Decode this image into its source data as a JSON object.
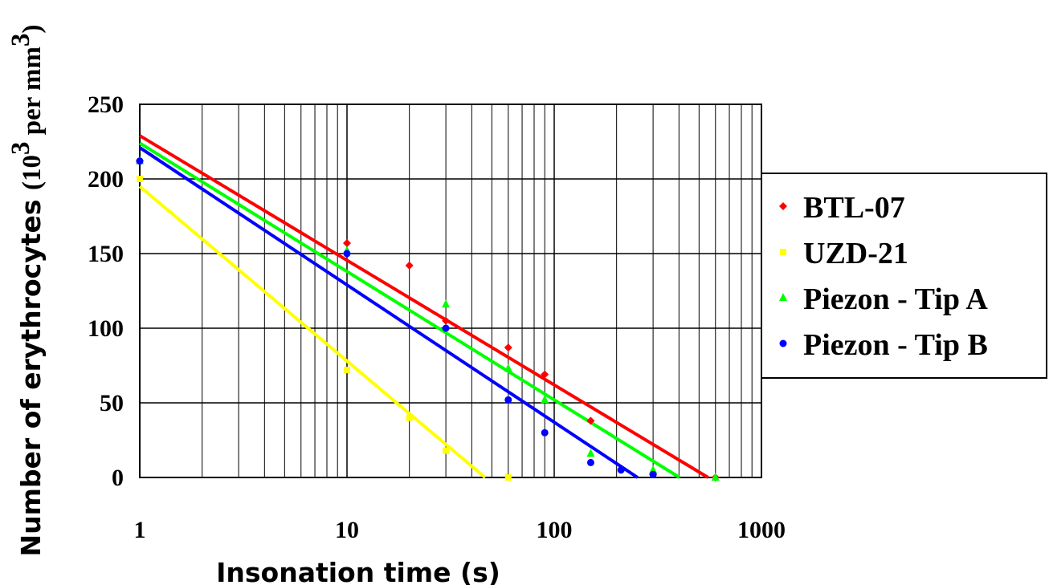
{
  "chart_data": {
    "type": "scatter",
    "x_scale": "log",
    "xlim": [
      1,
      1000
    ],
    "ylim": [
      0,
      250
    ],
    "x_ticks": [
      1,
      10,
      100,
      1000
    ],
    "x_tick_labels": [
      "1",
      "10",
      "100",
      "1000"
    ],
    "y_ticks": [
      0,
      50,
      100,
      150,
      200,
      250
    ],
    "y_tick_labels": [
      "0",
      "50",
      "100",
      "150",
      "200",
      "250"
    ],
    "xlabel": "Insonation time (s)",
    "ylabel_main": "Number of erythrocytes ",
    "ylabel_unit": "(10",
    "ylabel_exp": "3",
    "ylabel_unit_rest": " per mm",
    "ylabel_exp2": "3",
    "ylabel_close": ")",
    "grid": true,
    "legend_position": "right",
    "series": [
      {
        "name": "BTL-07",
        "color": "#ff0000",
        "marker": "diamond",
        "points": [
          [
            1,
            212
          ],
          [
            10,
            157
          ],
          [
            20,
            142
          ],
          [
            30,
            105
          ],
          [
            60,
            87
          ],
          [
            90,
            69
          ],
          [
            150,
            38
          ],
          [
            300,
            2
          ],
          [
            600,
            0
          ]
        ],
        "trend": {
          "intercept": 229,
          "slope": -83.5
        }
      },
      {
        "name": "UZD-21",
        "color": "#ffff00",
        "marker": "square",
        "points": [
          [
            1,
            200
          ],
          [
            10,
            72
          ],
          [
            20,
            40
          ],
          [
            30,
            18
          ],
          [
            60,
            0
          ]
        ],
        "trend": {
          "intercept": 195,
          "slope": -117
        }
      },
      {
        "name": "Piezon - Tip A",
        "color": "#00ff00",
        "marker": "triangle",
        "points": [
          [
            1,
            212
          ],
          [
            10,
            152
          ],
          [
            30,
            116
          ],
          [
            60,
            73
          ],
          [
            90,
            52
          ],
          [
            150,
            16
          ],
          [
            300,
            5
          ],
          [
            600,
            0
          ]
        ],
        "trend": {
          "intercept": 224,
          "slope": -86
        }
      },
      {
        "name": "Piezon - Tip B",
        "color": "#0000ff",
        "marker": "circle",
        "points": [
          [
            1,
            212
          ],
          [
            10,
            150
          ],
          [
            30,
            100
          ],
          [
            60,
            52
          ],
          [
            90,
            30
          ],
          [
            150,
            10
          ],
          [
            210,
            5
          ],
          [
            300,
            2
          ]
        ],
        "trend": {
          "intercept": 221,
          "slope": -92
        }
      }
    ]
  }
}
